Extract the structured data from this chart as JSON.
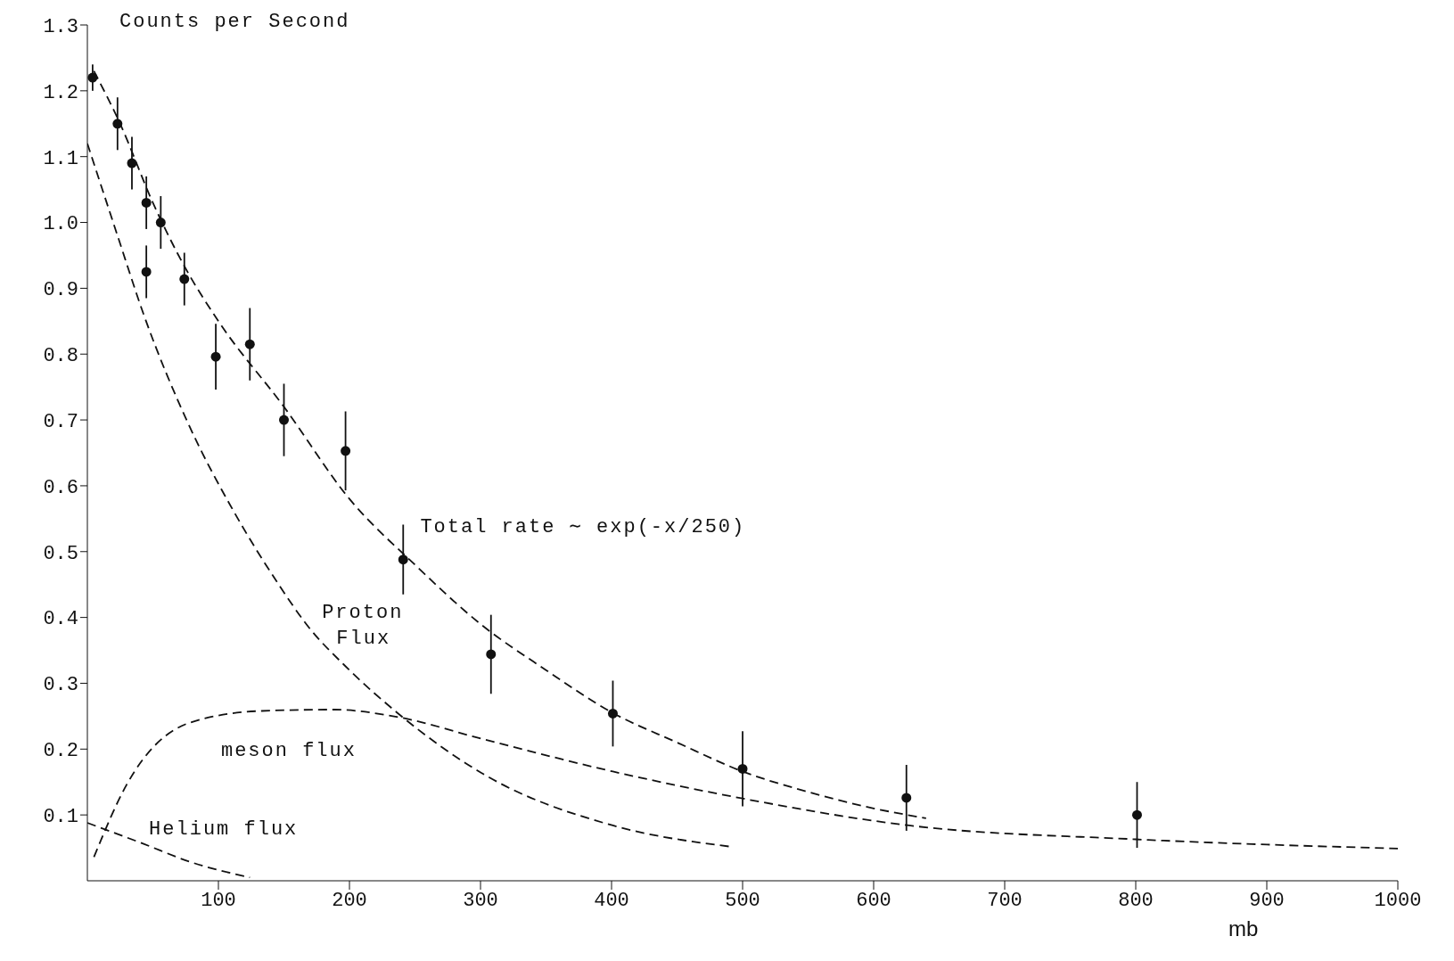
{
  "chart_data": {
    "type": "line",
    "ylabel": "Counts per Second",
    "xlabel": "mb",
    "xlim": [
      0,
      1000
    ],
    "ylim": [
      0,
      1.3
    ],
    "xticks": [
      100,
      200,
      300,
      400,
      500,
      600,
      700,
      800,
      900,
      1000
    ],
    "yticks": [
      0.1,
      0.2,
      0.3,
      0.4,
      0.5,
      0.6,
      0.7,
      0.8,
      0.9,
      {
        "value": 1,
        "label": "1.0"
      },
      1.1,
      1.2,
      1.3
    ],
    "grid": false,
    "legend": false,
    "line_style": "dashed",
    "series": [
      {
        "type": "scatter",
        "marker": "circle",
        "color": "#111111",
        "x": [
          4,
          23,
          34,
          45,
          45,
          56,
          74,
          98,
          124,
          150,
          197,
          241,
          308,
          401,
          500,
          625,
          801
        ],
        "values": [
          1.22,
          1.15,
          1.09,
          1.03,
          0.925,
          1.0,
          0.914,
          0.796,
          0.815,
          0.7,
          0.653,
          0.488,
          0.344,
          0.254,
          0.17,
          0.126,
          0.1
        ],
        "errors": [
          0.02,
          0.04,
          0.04,
          0.04,
          0.04,
          0.04,
          0.04,
          0.05,
          0.055,
          0.055,
          0.06,
          0.053,
          0.06,
          0.05,
          0.057,
          0.05,
          0.05
        ]
      },
      {
        "color": "#111111",
        "x": [
          5,
          25,
          50,
          75,
          100,
          150,
          200,
          250,
          300,
          350,
          400,
          450,
          500,
          550,
          600,
          640
        ],
        "values": [
          1.23,
          1.15,
          1.03,
          0.93,
          0.85,
          0.72,
          0.58,
          0.48,
          0.39,
          0.32,
          0.256,
          0.21,
          0.166,
          0.135,
          0.11,
          0.095
        ]
      },
      {
        "color": "#111111",
        "x": [
          0,
          23,
          43,
          78,
          112,
          146,
          167,
          200,
          236,
          304,
          401,
          490
        ],
        "values": [
          1.12,
          0.98,
          0.86,
          0.69,
          0.56,
          0.45,
          0.39,
          0.32,
          0.256,
          0.16,
          0.084,
          0.052
        ]
      },
      {
        "color": "#111111",
        "x": [
          5,
          30,
          78,
          133,
          188,
          236,
          304,
          401,
          500,
          627,
          800,
          1000
        ],
        "values": [
          0.036,
          0.146,
          0.24,
          0.258,
          0.26,
          0.249,
          0.214,
          0.166,
          0.125,
          0.084,
          0.063,
          0.049
        ]
      },
      {
        "color": "#111111",
        "x": [
          0,
          43,
          78,
          124
        ],
        "values": [
          0.088,
          0.056,
          0.029,
          0.005
        ]
      }
    ],
    "annotations": [
      "Total rate ∼ exp(-x/250)",
      "Proton",
      "Flux",
      "meson flux",
      "Helium flux"
    ]
  }
}
